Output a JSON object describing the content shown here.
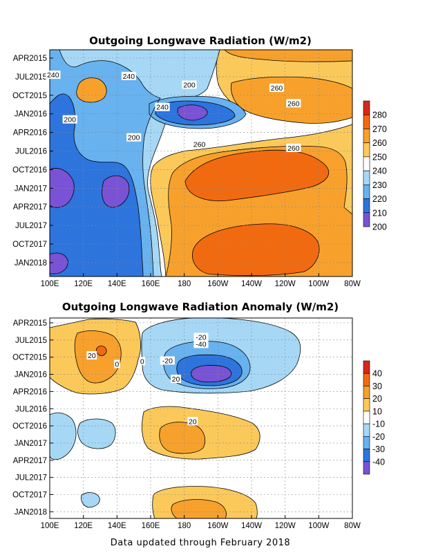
{
  "footer": "Data updated through February 2018",
  "chart_data": [
    {
      "type": "heatmap",
      "title": "Outgoing Longwave Radiation (W/m2)",
      "x_ticks": [
        "100E",
        "120E",
        "140E",
        "160E",
        "180",
        "160W",
        "140W",
        "120W",
        "100W",
        "80W"
      ],
      "y_ticks": [
        "APR2015",
        "JUL2015",
        "OCT2015",
        "JAN2016",
        "APR2016",
        "JUL2016",
        "OCT2016",
        "JAN2017",
        "APR2017",
        "JUL2017",
        "OCT2017",
        "JAN2018"
      ],
      "colorbar": {
        "levels": [
          "280",
          "270",
          "260",
          "250",
          "240",
          "230",
          "220",
          "210",
          "200"
        ],
        "colors": [
          "#d7271c",
          "#f26a10",
          "#f7a12c",
          "#fbc95a",
          "#ffffff",
          "#a6d8f6",
          "#67b2ef",
          "#2d74dd",
          "#7a52d6"
        ]
      },
      "contour_labels": [
        {
          "text": "240",
          "lon": 102,
          "t": 2.8
        },
        {
          "text": "240",
          "lon": 147,
          "t": 3.0
        },
        {
          "text": "200",
          "lon": 183,
          "t": 4.4
        },
        {
          "text": "260",
          "lon": 235,
          "t": 4.9
        },
        {
          "text": "260",
          "lon": 245,
          "t": 7.4
        },
        {
          "text": "240",
          "lon": 167,
          "t": 8.0
        },
        {
          "text": "200",
          "lon": 112,
          "t": 10.0
        },
        {
          "text": "200",
          "lon": 150,
          "t": 12.9
        },
        {
          "text": "260",
          "lon": 189,
          "t": 14.0
        },
        {
          "text": "260",
          "lon": 245,
          "t": 14.6
        }
      ]
    },
    {
      "type": "heatmap",
      "title": "Outgoing Longwave Radiation Anomaly (W/m2)",
      "x_ticks": [
        "100E",
        "120E",
        "140E",
        "160E",
        "180",
        "160W",
        "140W",
        "120W",
        "100W",
        "80W"
      ],
      "y_ticks": [
        "APR2015",
        "JUL2015",
        "OCT2015",
        "JAN2016",
        "APR2016",
        "JUL2016",
        "OCT2016",
        "JAN2017",
        "APR2017",
        "JUL2017",
        "OCT2017",
        "JAN2018"
      ],
      "colorbar": {
        "levels": [
          "40",
          "30",
          "20",
          "10",
          "-10",
          "-20",
          "-30",
          "-40"
        ],
        "colors": [
          "#d7271c",
          "#f26a10",
          "#f7a12c",
          "#fbc95a",
          "#ffffff",
          "#a6d8f6",
          "#67b2ef",
          "#2d74dd",
          "#7a52d6"
        ]
      },
      "contour_labels": [
        {
          "text": "-20",
          "lon": 190,
          "t": 2.6
        },
        {
          "text": "-40",
          "lon": 190,
          "t": 3.8
        },
        {
          "text": "20",
          "lon": 125,
          "t": 5.8
        },
        {
          "text": "-20",
          "lon": 170,
          "t": 6.7
        },
        {
          "text": "0",
          "lon": 140,
          "t": 7.3
        },
        {
          "text": "0",
          "lon": 155,
          "t": 6.8
        },
        {
          "text": "20",
          "lon": 175,
          "t": 9.9
        },
        {
          "text": "20",
          "lon": 185,
          "t": 17.3
        }
      ]
    }
  ]
}
